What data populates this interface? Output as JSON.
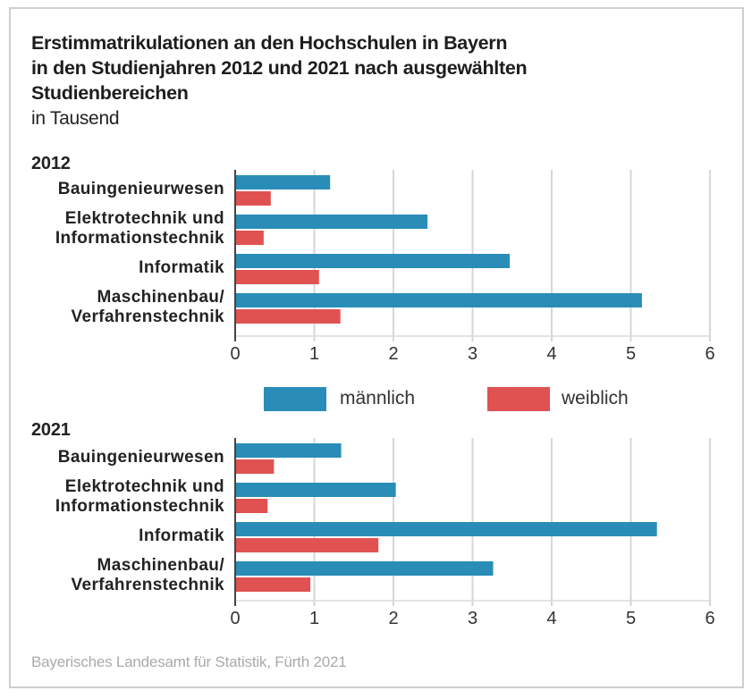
{
  "chart_data": {
    "type": "bar",
    "orientation": "horizontal",
    "title": "Erstimmatrikulationen an den Hochschulen in Bayern in den Studienjahren 2012 und 2021 nach ausgewählten Studienbereichen",
    "title_lines": [
      "Erstimmatrikulationen an den Hochschulen in Bayern",
      "in den Studienjahren 2012 und 2021 nach ausgewählten",
      "Studienbereichen"
    ],
    "subtitle": "in Tausend",
    "xlabel": "",
    "ylabel": "",
    "xlim": [
      0,
      6
    ],
    "xticks": [
      "0",
      "1",
      "2",
      "3",
      "4",
      "5",
      "6"
    ],
    "grid": true,
    "legend": {
      "placement": "between-panels",
      "entries": [
        {
          "name": "männlich",
          "color": "#2a8db8"
        },
        {
          "name": "weiblich",
          "color": "#e05252"
        }
      ]
    },
    "panels": [
      {
        "year": "2012",
        "categories": [
          [
            "Bauingenieurwesen"
          ],
          [
            "Elektrotechnik und",
            "Informationstechnik"
          ],
          [
            "Informatik"
          ],
          [
            "Maschinenbau/",
            "Verfahrenstechnik"
          ]
        ],
        "series": [
          {
            "name": "männlich",
            "values": [
              1.2,
              2.43,
              3.47,
              5.14
            ]
          },
          {
            "name": "weiblich",
            "values": [
              0.45,
              0.36,
              1.06,
              1.33
            ]
          }
        ]
      },
      {
        "year": "2021",
        "categories": [
          [
            "Bauingenieurwesen"
          ],
          [
            "Elektrotechnik und",
            "Informationstechnik"
          ],
          [
            "Informatik"
          ],
          [
            "Maschinenbau/",
            "Verfahrenstechnik"
          ]
        ],
        "series": [
          {
            "name": "männlich",
            "values": [
              1.34,
              2.03,
              5.33,
              3.26
            ]
          },
          {
            "name": "weiblich",
            "values": [
              0.49,
              0.41,
              1.81,
              0.95
            ]
          }
        ]
      }
    ],
    "source": "Bayerisches Landesamt für Statistik, Fürth 2021"
  }
}
